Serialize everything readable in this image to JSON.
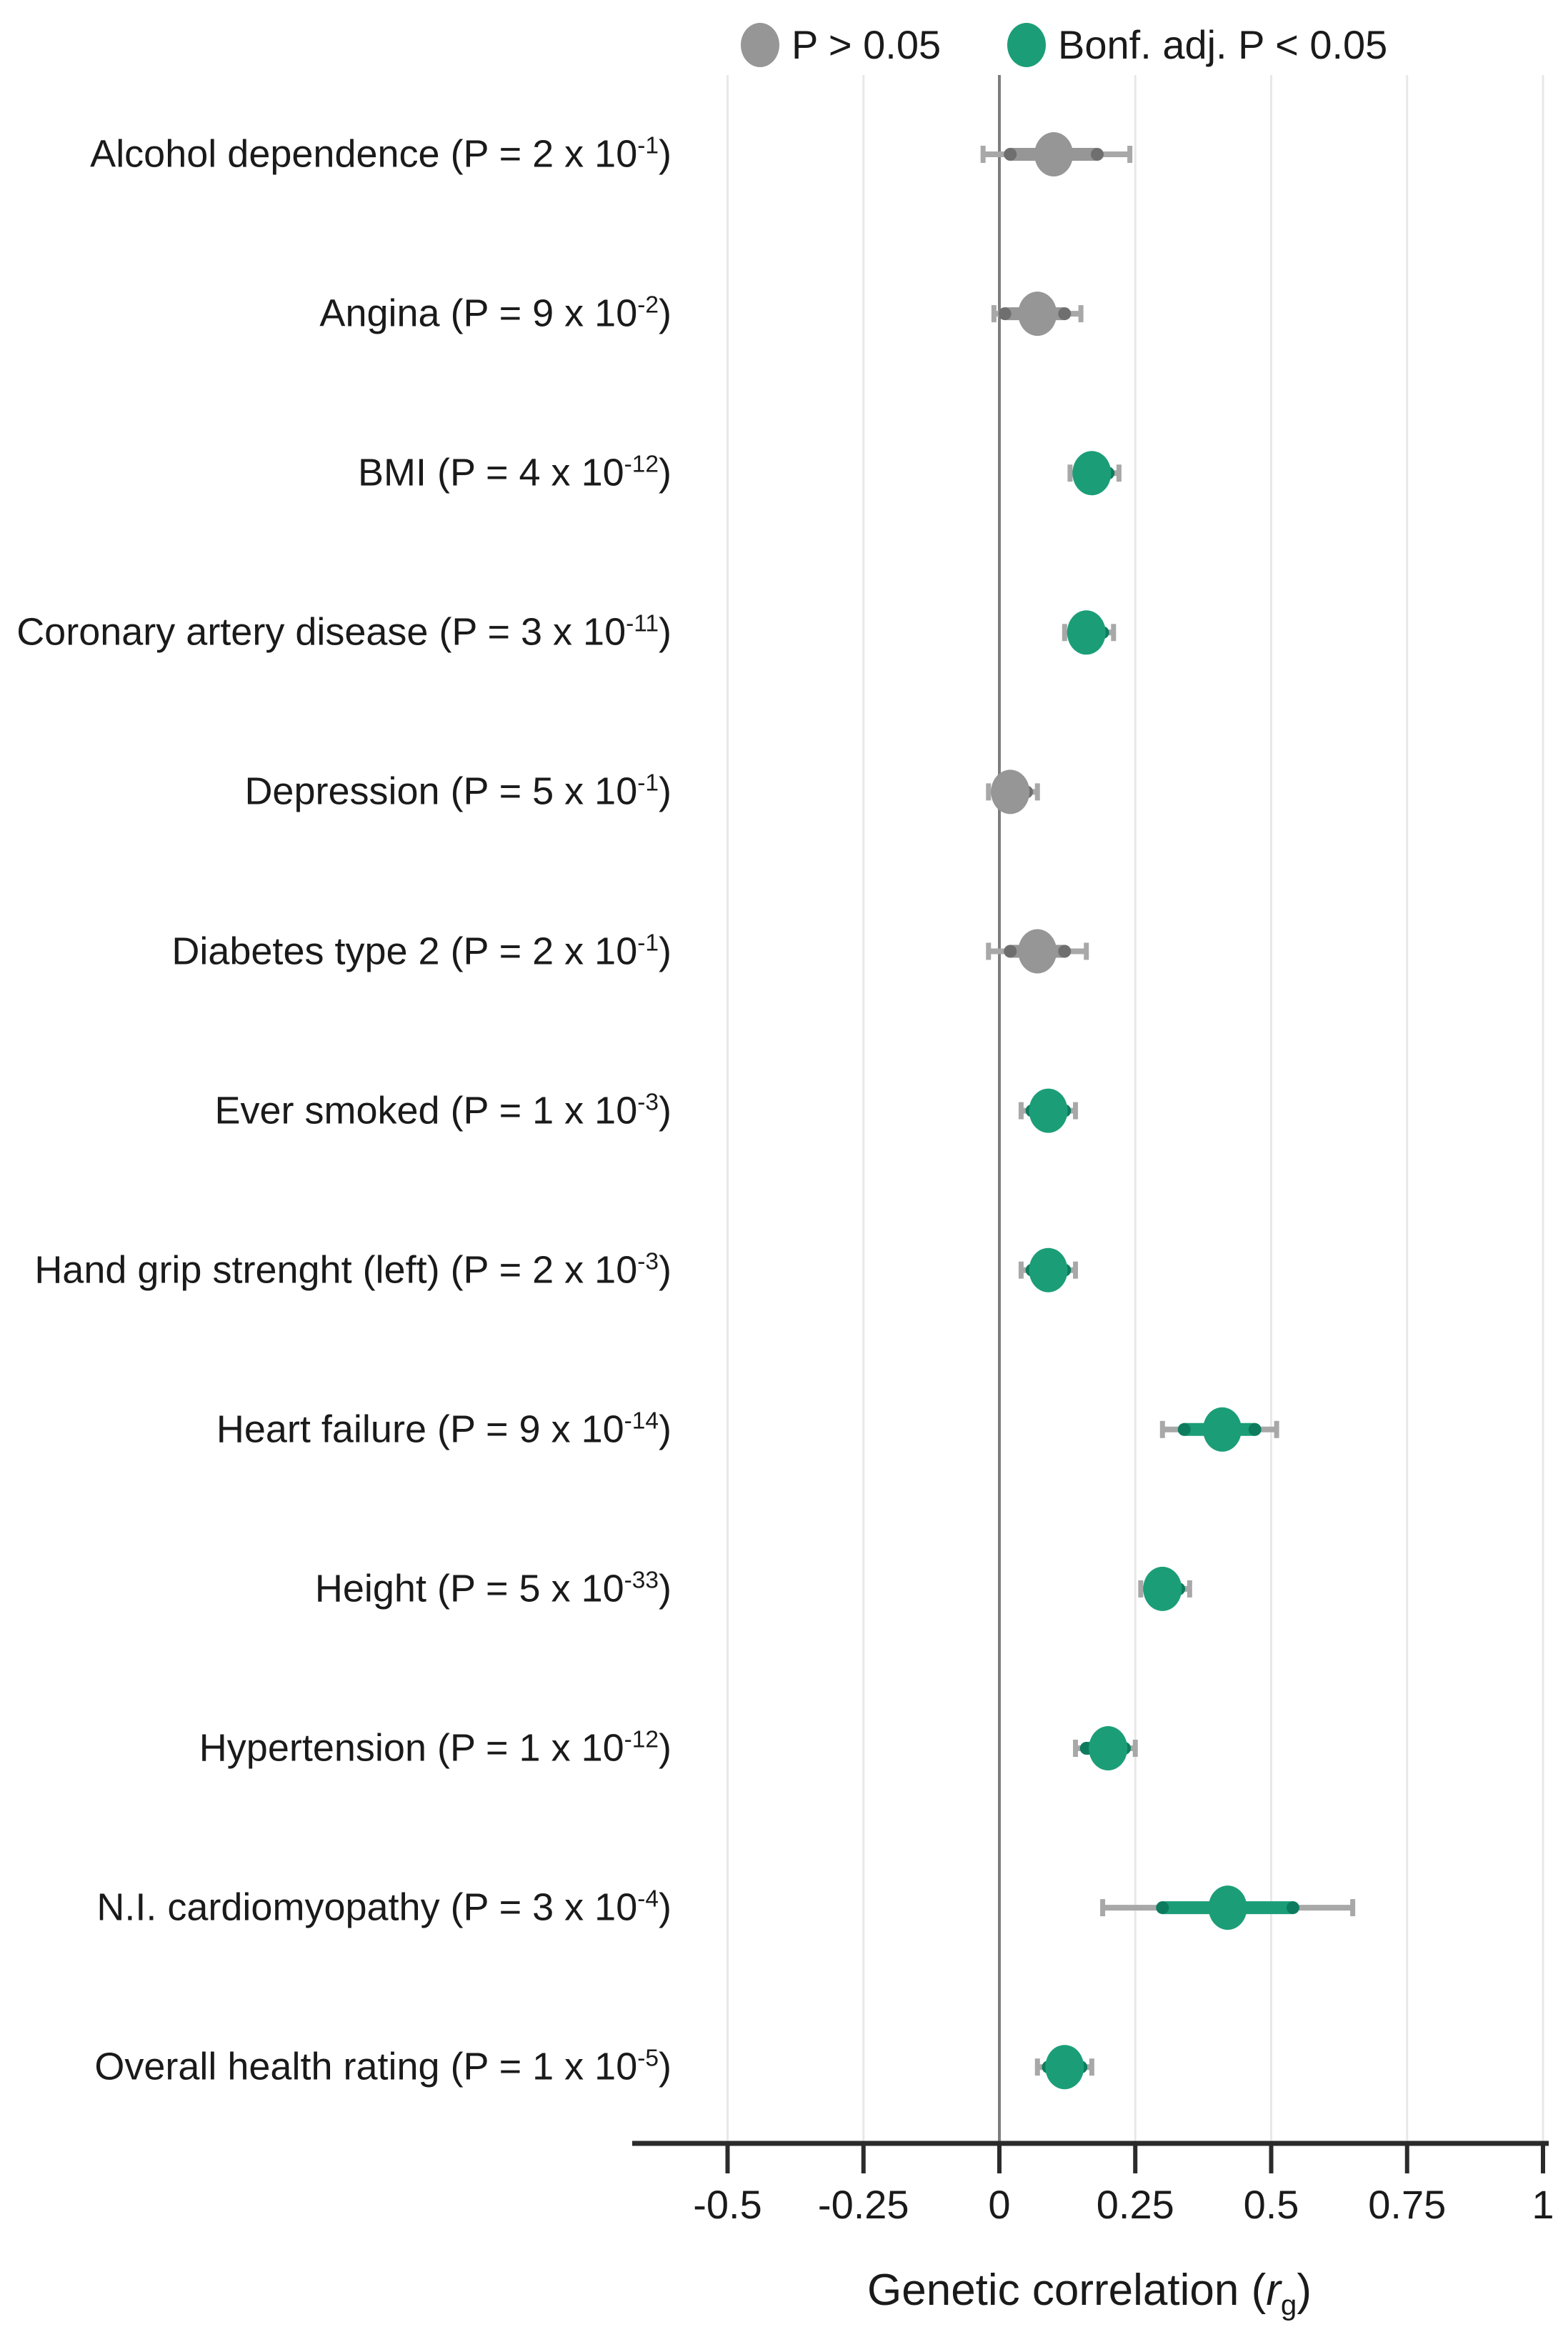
{
  "figure": {
    "background": "#ffffff"
  },
  "legend": {
    "items": [
      {
        "label": "P > 0.05",
        "color": "#969696",
        "significant": false
      },
      {
        "label": "Bonf. adj. P < 0.05",
        "color": "#1b9e77",
        "significant": true
      }
    ]
  },
  "axis": {
    "title_prefix": "Genetic correlation (",
    "title_symbol": "r",
    "title_subscript": "g",
    "title_suffix": ")"
  },
  "colors": {
    "nonsignificant": "#969696",
    "significant": "#1b9e77",
    "nonsignificant_dark": "#6f6f6f",
    "significant_dark": "#0d7c5e",
    "thin_ci": "#a8a8a8",
    "zero_line": "#7d7d7d",
    "gridline": "#e8e8e8",
    "axis": "#2b2b2b",
    "text": "#1a1a1a"
  },
  "chart_data": {
    "type": "scatter",
    "subtype": "forest-plot",
    "xlabel": "Genetic correlation (rg)",
    "legend_position": "top",
    "grid": "vertical",
    "xlim": [
      -0.675,
      1.01
    ],
    "x_ticks": [
      {
        "value": -0.5,
        "label": "-0.5"
      },
      {
        "value": -0.25,
        "label": "-0.25"
      },
      {
        "value": 0,
        "label": "0"
      },
      {
        "value": 0.25,
        "label": "0.25"
      },
      {
        "value": 0.5,
        "label": "0.5"
      },
      {
        "value": 0.75,
        "label": "0.75"
      },
      {
        "value": 1,
        "label": "1"
      }
    ],
    "rows": [
      {
        "trait": "Alcohol dependence",
        "p_mantissa": "2",
        "p_exponent": "-1",
        "significant": false,
        "rg": 0.1,
        "ci_thick": [
          0.02,
          0.18
        ],
        "ci_thin": [
          -0.03,
          0.24
        ]
      },
      {
        "trait": "Angina",
        "p_mantissa": "9",
        "p_exponent": "-2",
        "significant": false,
        "rg": 0.07,
        "ci_thick": [
          0.01,
          0.12
        ],
        "ci_thin": [
          -0.01,
          0.15
        ]
      },
      {
        "trait": "BMI",
        "p_mantissa": "4",
        "p_exponent": "-12",
        "significant": true,
        "rg": 0.17,
        "ci_thick": [
          0.15,
          0.2
        ],
        "ci_thin": [
          0.13,
          0.22
        ]
      },
      {
        "trait": "Coronary artery disease",
        "p_mantissa": "3",
        "p_exponent": "-11",
        "significant": true,
        "rg": 0.16,
        "ci_thick": [
          0.14,
          0.19
        ],
        "ci_thin": [
          0.12,
          0.21
        ]
      },
      {
        "trait": "Depression",
        "p_mantissa": "5",
        "p_exponent": "-1",
        "significant": false,
        "rg": 0.02,
        "ci_thick": [
          0.0,
          0.05
        ],
        "ci_thin": [
          -0.02,
          0.07
        ]
      },
      {
        "trait": "Diabetes type 2",
        "p_mantissa": "2",
        "p_exponent": "-1",
        "significant": false,
        "rg": 0.07,
        "ci_thick": [
          0.02,
          0.12
        ],
        "ci_thin": [
          -0.02,
          0.16
        ]
      },
      {
        "trait": "Ever smoked",
        "p_mantissa": "1",
        "p_exponent": "-3",
        "significant": true,
        "rg": 0.09,
        "ci_thick": [
          0.06,
          0.12
        ],
        "ci_thin": [
          0.04,
          0.14
        ]
      },
      {
        "trait": "Hand grip strenght (left)",
        "p_mantissa": "2",
        "p_exponent": "-3",
        "significant": true,
        "rg": 0.09,
        "ci_thick": [
          0.06,
          0.12
        ],
        "ci_thin": [
          0.04,
          0.14
        ]
      },
      {
        "trait": "Heart failure",
        "p_mantissa": "9",
        "p_exponent": "-14",
        "significant": true,
        "rg": 0.41,
        "ci_thick": [
          0.34,
          0.47
        ],
        "ci_thin": [
          0.3,
          0.51
        ]
      },
      {
        "trait": "Height",
        "p_mantissa": "5",
        "p_exponent": "-33",
        "significant": true,
        "rg": 0.3,
        "ci_thick": [
          0.28,
          0.33
        ],
        "ci_thin": [
          0.26,
          0.35
        ]
      },
      {
        "trait": "Hypertension",
        "p_mantissa": "1",
        "p_exponent": "-12",
        "significant": true,
        "rg": 0.2,
        "ci_thick": [
          0.16,
          0.23
        ],
        "ci_thin": [
          0.14,
          0.25
        ]
      },
      {
        "trait": "N.I. cardiomyopathy",
        "p_mantissa": "3",
        "p_exponent": "-4",
        "significant": true,
        "rg": 0.42,
        "ci_thick": [
          0.3,
          0.54
        ],
        "ci_thin": [
          0.19,
          0.65
        ]
      },
      {
        "trait": "Overall health rating",
        "p_mantissa": "1",
        "p_exponent": "-5",
        "significant": true,
        "rg": 0.12,
        "ci_thick": [
          0.09,
          0.15
        ],
        "ci_thin": [
          0.07,
          0.17
        ]
      }
    ]
  }
}
